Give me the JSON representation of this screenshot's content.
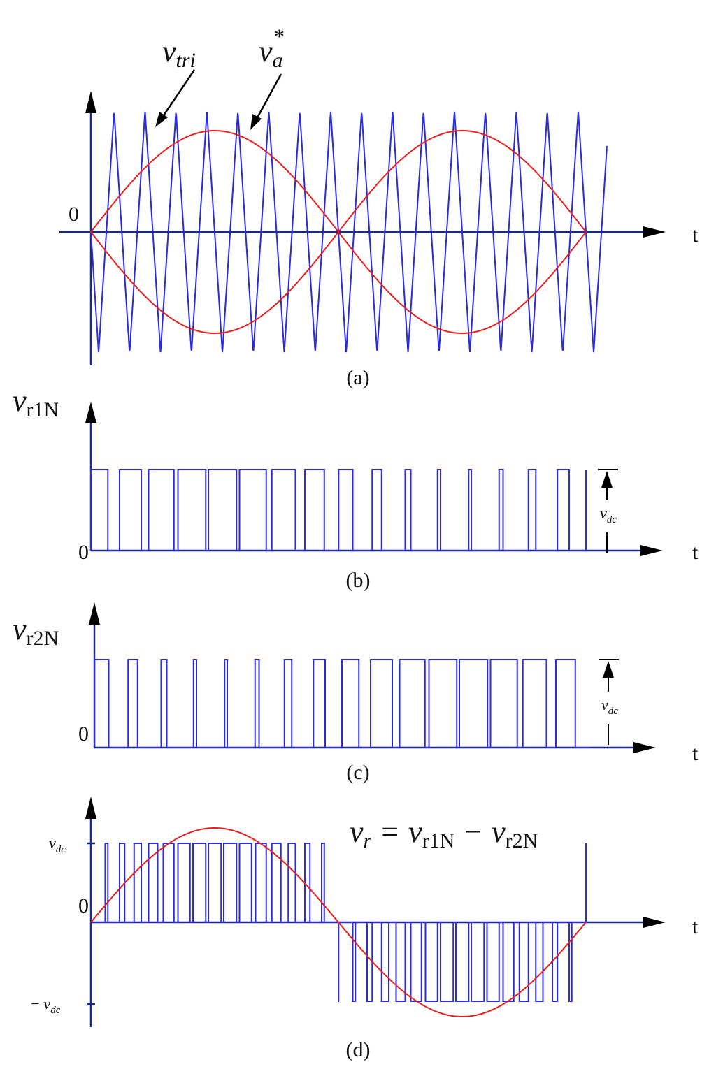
{
  "panel_a": {
    "tri_label": {
      "base": "v",
      "sub": "tri"
    },
    "ref_label": {
      "base": "v",
      "sub": "a",
      "sup": "*"
    },
    "zero": "0",
    "t": "t",
    "caption": "(a)"
  },
  "panel_b": {
    "y_label": {
      "base": "v",
      "sub": "r1N"
    },
    "zero": "0",
    "t": "t",
    "amp_label": {
      "base": "v",
      "sub": "dc"
    },
    "caption": "(b)"
  },
  "panel_c": {
    "y_label": {
      "base": "v",
      "sub": "r2N"
    },
    "zero": "0",
    "t": "t",
    "amp_label": {
      "base": "v",
      "sub": "dc"
    },
    "caption": "(c)"
  },
  "panel_d": {
    "pos_label": {
      "base": "v",
      "sub": "dc"
    },
    "zero": "0",
    "neg_label": {
      "sign": "−",
      "base": "v",
      "sub": "dc"
    },
    "t": "t",
    "caption": "(d)",
    "equation": {
      "lhs": {
        "base": "v",
        "sub": "r"
      },
      "eq": "=",
      "a": {
        "base": "v",
        "sub": "r1N"
      },
      "minus": "−",
      "b": {
        "base": "v",
        "sub": "r2N"
      }
    }
  }
}
